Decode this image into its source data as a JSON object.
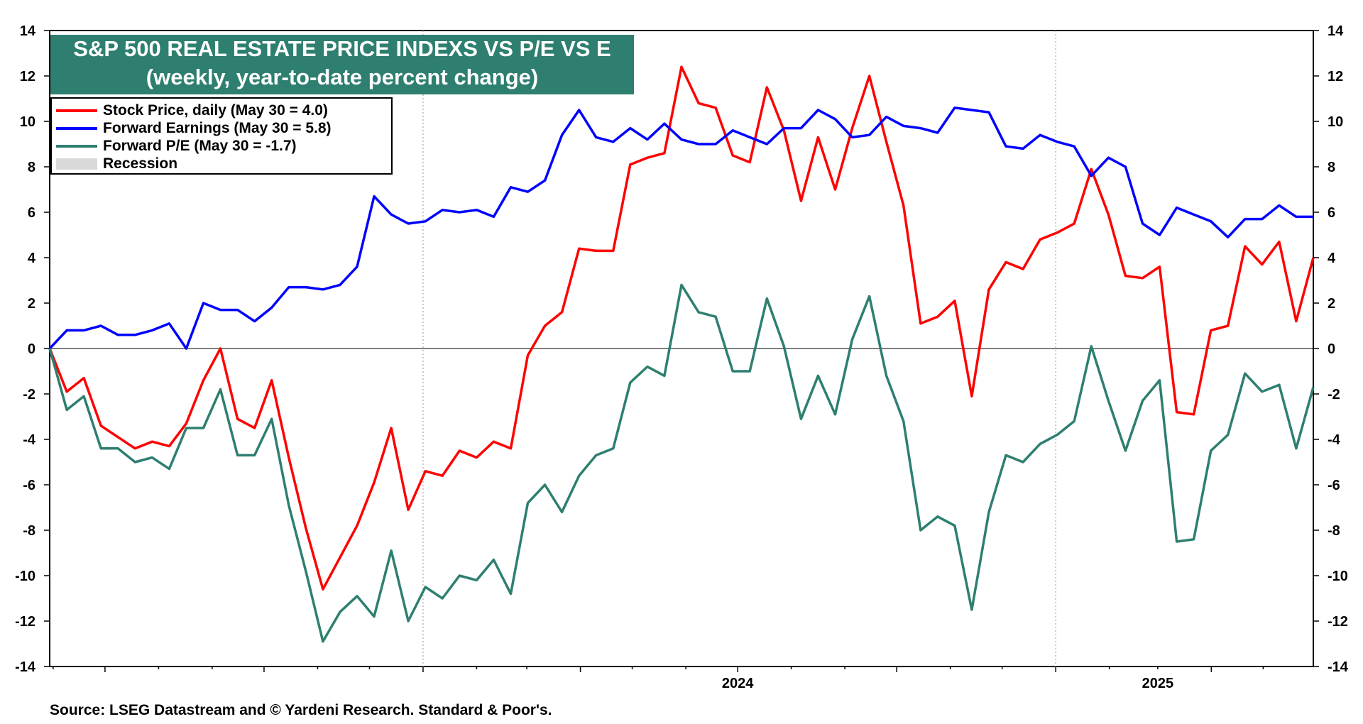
{
  "title_lines": [
    "S&P 500 REAL ESTATE PRICE INDEXS VS P/E VS E",
    "(weekly, year-to-date percent change)"
  ],
  "source": "Source: LSEG Datastream and © Yardeni Research. Standard & Poor's.",
  "colors": {
    "stock_price": "#ff0000",
    "forward_earnings": "#0000ff",
    "forward_pe": "#2e7f70",
    "recession": "#d9d9d9",
    "title_bg": "#2e7f70"
  },
  "legend": [
    {
      "label": "Stock Price, daily (May 30 = 4.0)",
      "color": "#ff0000",
      "kind": "line"
    },
    {
      "label": "Forward Earnings (May 30 = 5.8)",
      "color": "#0000ff",
      "kind": "line"
    },
    {
      "label": "Forward P/E (May 30 = -1.7)",
      "color": "#2e7f70",
      "kind": "line"
    },
    {
      "label": "Recession",
      "color": "#d9d9d9",
      "kind": "box"
    }
  ],
  "chart_data": {
    "type": "line",
    "title": "S&P 500 REAL ESTATE PRICE INDEXS VS P/E VS E (weekly, year-to-date percent change)",
    "x_range": [
      "2023-05-30",
      "2025-05-30"
    ],
    "x_tick_labels": [
      {
        "label": "2024",
        "date": "2024-07-01"
      },
      {
        "label": "2025",
        "date": "2025-03-01"
      }
    ],
    "ylim": [
      -14,
      14
    ],
    "yticks": [
      -14,
      -12,
      -10,
      -8,
      -6,
      -4,
      -2,
      0,
      2,
      4,
      6,
      8,
      10,
      12,
      14
    ],
    "grid": true,
    "legend_position": "top-left",
    "series": [
      {
        "name": "Stock Price, daily (May 30 = 4.0)",
        "color": "#ff0000",
        "values": [
          0,
          -1.9,
          -1.3,
          -3.4,
          -3.9,
          -4.4,
          -4.1,
          -4.3,
          -3.3,
          -1.4,
          0,
          -3.1,
          -3.5,
          -1.4,
          -4.8,
          -7.9,
          -10.6,
          -9.2,
          -7.8,
          -5.9,
          -3.5,
          -7.1,
          -5.4,
          -5.6,
          -4.5,
          -4.8,
          -4.1,
          -4.4,
          -0.3,
          1.0,
          1.6,
          4.4,
          4.3,
          4.3,
          8.1,
          8.4,
          8.6,
          12.4,
          10.8,
          10.6,
          8.5,
          8.2,
          11.5,
          9.6,
          6.5,
          9.3,
          7.0,
          9.7,
          12.0,
          9.1,
          6.3,
          1.1,
          1.4,
          2.1,
          -2.1,
          2.6,
          3.8,
          3.5,
          4.8,
          5.1,
          5.5,
          7.9,
          5.9,
          3.2,
          3.1,
          3.6,
          -2.8,
          -2.9,
          0.8,
          1.0,
          4.5,
          3.7,
          4.7,
          1.2,
          4.0
        ]
      },
      {
        "name": "Forward Earnings (May 30 = 5.8)",
        "color": "#0000ff",
        "values": [
          0,
          0.8,
          0.8,
          1.0,
          0.6,
          0.6,
          0.8,
          1.1,
          0,
          2.0,
          1.7,
          1.7,
          1.2,
          1.8,
          2.7,
          2.7,
          2.6,
          2.8,
          3.6,
          6.7,
          5.9,
          5.5,
          5.6,
          6.1,
          6.0,
          6.1,
          5.8,
          7.1,
          6.9,
          7.4,
          9.4,
          10.5,
          9.3,
          9.1,
          9.7,
          9.2,
          9.9,
          9.2,
          9.0,
          9.0,
          9.6,
          9.3,
          9.0,
          9.7,
          9.7,
          10.5,
          10.1,
          9.3,
          9.4,
          10.2,
          9.8,
          9.7,
          9.5,
          10.6,
          10.5,
          10.4,
          8.9,
          8.8,
          9.4,
          9.1,
          8.9,
          7.6,
          8.4,
          8.0,
          5.5,
          5.0,
          6.2,
          5.9,
          5.6,
          4.9,
          5.7,
          5.7,
          6.3,
          5.8,
          5.8
        ]
      },
      {
        "name": "Forward P/E (May 30 = -1.7)",
        "color": "#2e7f70",
        "values": [
          0,
          -2.7,
          -2.1,
          -4.4,
          -4.4,
          -5.0,
          -4.8,
          -5.3,
          -3.5,
          -3.5,
          -1.8,
          -4.7,
          -4.7,
          -3.1,
          -6.9,
          -9.8,
          -12.9,
          -11.6,
          -10.9,
          -11.8,
          -8.9,
          -12.0,
          -10.5,
          -11.0,
          -10.0,
          -10.2,
          -9.3,
          -10.8,
          -6.8,
          -6.0,
          -7.2,
          -5.6,
          -4.7,
          -4.4,
          -1.5,
          -0.8,
          -1.2,
          2.8,
          1.6,
          1.4,
          -1.0,
          -1.0,
          2.2,
          0.1,
          -3.1,
          -1.2,
          -2.9,
          0.4,
          2.3,
          -1.2,
          -3.2,
          -8.0,
          -7.4,
          -7.8,
          -11.5,
          -7.2,
          -4.7,
          -5.0,
          -4.2,
          -3.8,
          -3.2,
          0.1,
          -2.3,
          -4.5,
          -2.3,
          -1.4,
          -8.5,
          -8.4,
          -4.5,
          -3.8,
          -1.1,
          -1.9,
          -1.6,
          -4.4,
          -1.7
        ]
      }
    ]
  }
}
